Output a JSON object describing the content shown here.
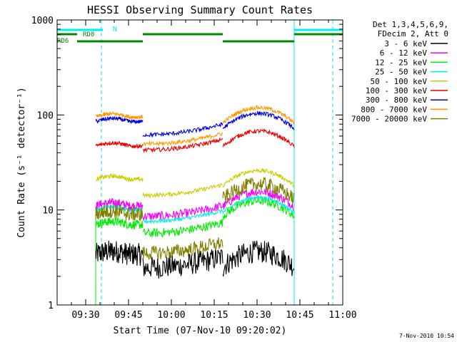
{
  "chart_data": {
    "type": "line",
    "title": "HESSI Observing Summary Count Rates",
    "xlabel": "Start Time (07-Nov-10 09:20:02)",
    "ylabel": "Count Rate (s⁻¹ detector⁻¹)",
    "y_scale": "log",
    "ylim": [
      1,
      1000
    ],
    "xlim_minutes_after_0920": [
      0,
      100
    ],
    "x_ticks": [
      {
        "label": "09:30",
        "minute": 10
      },
      {
        "label": "09:45",
        "minute": 25
      },
      {
        "label": "10:00",
        "minute": 40
      },
      {
        "label": "10:15",
        "minute": 55
      },
      {
        "label": "10:30",
        "minute": 70
      },
      {
        "label": "10:45",
        "minute": 85
      },
      {
        "label": "11:00",
        "minute": 100
      }
    ],
    "y_ticks": [
      {
        "label": "1",
        "value": 1
      },
      {
        "label": "10",
        "value": 10
      },
      {
        "label": "100",
        "value": 100
      },
      {
        "label": "1000",
        "value": 1000
      }
    ],
    "legend_header": [
      "Det 1,3,4,5,6,9,",
      "FDecim 2, Att 0"
    ],
    "legend_position": "right",
    "footer_date": "7-Nov-2010 10:54",
    "segments_minutes": [
      [
        13.5,
        30
      ],
      [
        30,
        58
      ],
      [
        58,
        83
      ]
    ],
    "series": [
      {
        "name": "3 - 6 keV",
        "color": "#000000",
        "values": [
          3.4,
          2.6,
          3.5
        ]
      },
      {
        "name": "6 - 12 keV",
        "color": "#ff00ff",
        "values": [
          11,
          9,
          15
        ]
      },
      {
        "name": "12 - 25 keV",
        "color": "#00ee00",
        "values": [
          7,
          6,
          12
        ]
      },
      {
        "name": "25 - 50 keV",
        "color": "#00eeee",
        "values": [
          10,
          8,
          13
        ]
      },
      {
        "name": "50 - 100 keV",
        "color": "#cccc00",
        "values": [
          21,
          15,
          25
        ]
      },
      {
        "name": "100 - 300 keV",
        "color": "#ee0000",
        "values": [
          47,
          45,
          65
        ]
      },
      {
        "name": "300 - 800 keV",
        "color": "#0000dd",
        "values": [
          85,
          65,
          100
        ]
      },
      {
        "name": "800 - 7000 keV",
        "color": "#ff9900",
        "values": [
          95,
          52,
          115
        ]
      },
      {
        "name": "7000 - 20000 keV",
        "color": "#808000",
        "values": [
          9,
          3.7,
          18
        ]
      }
    ],
    "annotations": [
      {
        "label": "N",
        "color": "#00eeee",
        "minute_start": 0,
        "minute_end": 20
      },
      {
        "label": "RD0",
        "color": "#008800",
        "minute_start": 0,
        "minute_end": 7
      },
      {
        "label": "RD6",
        "color": "#008800",
        "minute_start": 7,
        "minute_end": 30
      }
    ],
    "grid": false
  }
}
